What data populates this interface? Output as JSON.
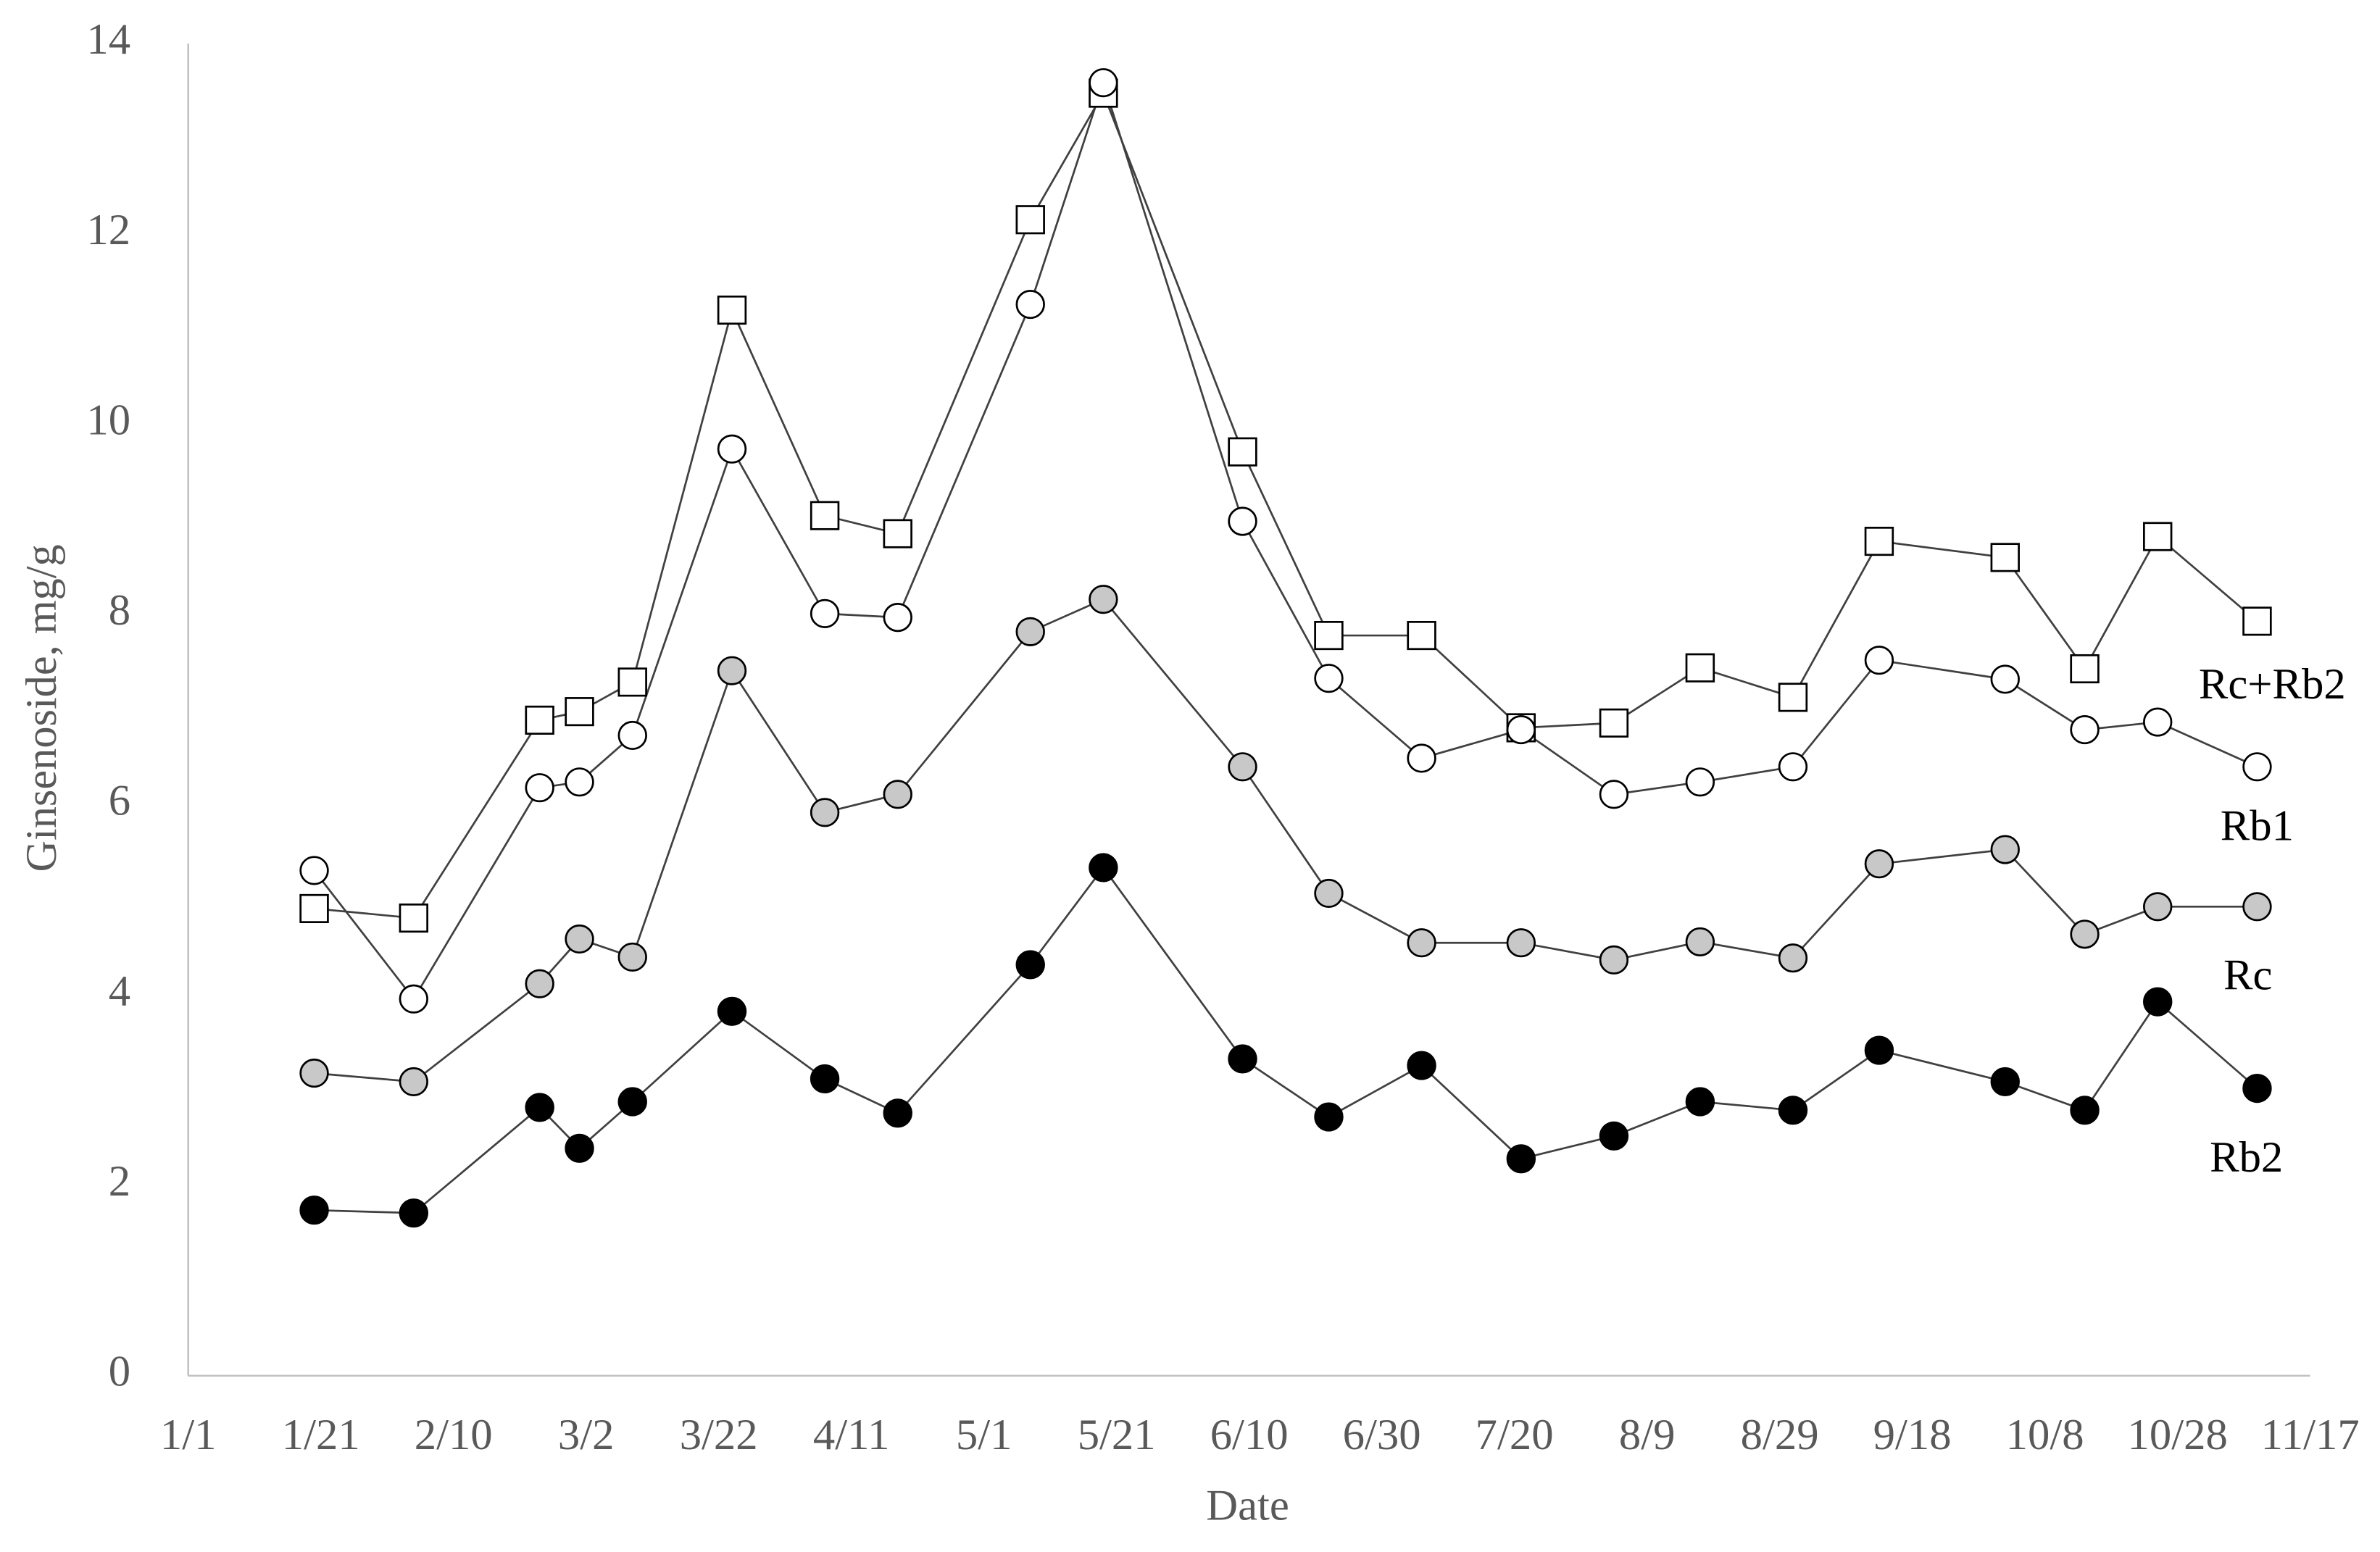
{
  "chart_data": {
    "type": "line",
    "x_label": "Date",
    "y_label": "Ginsenoside, mg/g",
    "x": [
      19,
      34,
      53,
      59,
      67,
      82,
      96,
      107,
      127,
      138,
      159,
      172,
      186,
      201,
      215,
      228,
      242,
      255,
      274,
      286,
      297,
      312
    ],
    "series": [
      {
        "name": "Rc+Rb2",
        "marker": "square",
        "color": "#ffffff",
        "values": [
          4.91,
          4.81,
          6.89,
          6.98,
          7.29,
          11.2,
          9.04,
          8.85,
          12.15,
          13.48,
          9.71,
          7.78,
          7.78,
          6.81,
          6.86,
          7.44,
          7.13,
          8.77,
          8.6,
          7.43,
          8.82,
          7.93
        ]
      },
      {
        "name": "Rb1",
        "marker": "circle",
        "color": "#ffffff",
        "values": [
          5.31,
          3.96,
          6.18,
          6.24,
          6.73,
          9.74,
          8.01,
          7.97,
          11.26,
          13.59,
          8.98,
          7.33,
          6.49,
          6.79,
          6.11,
          6.24,
          6.4,
          7.52,
          7.32,
          6.79,
          6.87,
          6.4
        ]
      },
      {
        "name": "Rc",
        "marker": "circle",
        "color": "#c8c8c8",
        "values": [
          3.18,
          3.09,
          4.12,
          4.59,
          4.4,
          7.41,
          5.92,
          6.11,
          7.82,
          8.16,
          6.4,
          5.07,
          4.55,
          4.55,
          4.37,
          4.56,
          4.39,
          5.38,
          5.53,
          4.64,
          4.93,
          4.93
        ]
      },
      {
        "name": "Rb2",
        "marker": "circle",
        "color": "#000000",
        "values": [
          1.74,
          1.71,
          2.82,
          2.39,
          2.88,
          3.83,
          3.12,
          2.76,
          4.32,
          5.34,
          3.33,
          2.72,
          3.26,
          2.28,
          2.52,
          2.88,
          2.79,
          3.42,
          3.09,
          2.79,
          3.93,
          3.02
        ]
      }
    ],
    "xlim": [
      0,
      320
    ],
    "xticks": [
      {
        "value": 0,
        "label": "1/1"
      },
      {
        "value": 20,
        "label": "1/21"
      },
      {
        "value": 40,
        "label": "2/10"
      },
      {
        "value": 60,
        "label": "3/2"
      },
      {
        "value": 80,
        "label": "3/22"
      },
      {
        "value": 100,
        "label": "4/11"
      },
      {
        "value": 120,
        "label": "5/1"
      },
      {
        "value": 140,
        "label": "5/21"
      },
      {
        "value": 160,
        "label": "6/10"
      },
      {
        "value": 180,
        "label": "6/30"
      },
      {
        "value": 200,
        "label": "7/20"
      },
      {
        "value": 220,
        "label": "8/9"
      },
      {
        "value": 240,
        "label": "8/29"
      },
      {
        "value": 260,
        "label": "9/18"
      },
      {
        "value": 280,
        "label": "10/8"
      },
      {
        "value": 300,
        "label": "10/28"
      },
      {
        "value": 320,
        "label": "11/17"
      }
    ],
    "ylim": [
      0,
      14
    ],
    "yticks": [
      0,
      2,
      4,
      6,
      8,
      10,
      12,
      14
    ],
    "grid": false
  }
}
